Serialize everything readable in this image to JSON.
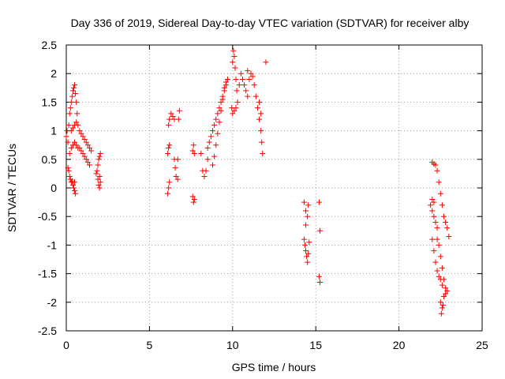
{
  "chart_data": {
    "type": "scatter",
    "title": "Day 336 of 2019, Sidereal Day-to-day VTEC variation (SDTVAR) for receiver alby",
    "xlabel": "GPS time / hours",
    "ylabel": "SDTVAR / TECUs",
    "xlim": [
      0,
      25
    ],
    "ylim": [
      -2.5,
      2.5
    ],
    "xticks": [
      0,
      5,
      10,
      15,
      20,
      25
    ],
    "yticks": [
      -2.5,
      -2,
      -1.5,
      -1,
      -0.5,
      0,
      0.5,
      1,
      1.5,
      2,
      2.5
    ],
    "xtick_labels": [
      "0",
      "5",
      "10",
      "15",
      "20",
      "25"
    ],
    "ytick_labels": [
      "-2.5",
      "-2",
      "-1.5",
      "-1",
      "-0.5",
      "0",
      "0.5",
      "1",
      "1.5",
      "2",
      "2.5"
    ],
    "grid": true,
    "marker": "+",
    "marker_color": "#ff0000",
    "series": [
      {
        "name": "SDTVAR",
        "points": [
          [
            0.0,
            0.9
          ],
          [
            0.05,
            1.0
          ],
          [
            0.1,
            0.8
          ],
          [
            0.15,
            1.1
          ],
          [
            0.2,
            1.3
          ],
          [
            0.25,
            1.4
          ],
          [
            0.3,
            1.5
          ],
          [
            0.35,
            1.6
          ],
          [
            0.4,
            1.7
          ],
          [
            0.45,
            1.75
          ],
          [
            0.5,
            1.8
          ],
          [
            0.55,
            1.65
          ],
          [
            0.6,
            1.5
          ],
          [
            0.65,
            1.3
          ],
          [
            0.1,
            0.35
          ],
          [
            0.15,
            0.3
          ],
          [
            0.2,
            0.2
          ],
          [
            0.25,
            0.15
          ],
          [
            0.3,
            0.1
          ],
          [
            0.35,
            0.12
          ],
          [
            0.4,
            0.05
          ],
          [
            0.45,
            0.0
          ],
          [
            0.5,
            -0.05
          ],
          [
            0.55,
            -0.1
          ],
          [
            0.5,
            0.1
          ],
          [
            0.2,
            0.6
          ],
          [
            0.3,
            0.7
          ],
          [
            0.4,
            0.75
          ],
          [
            0.5,
            0.8
          ],
          [
            0.6,
            0.75
          ],
          [
            0.7,
            0.7
          ],
          [
            0.8,
            0.7
          ],
          [
            0.9,
            0.65
          ],
          [
            1.0,
            0.6
          ],
          [
            1.1,
            0.55
          ],
          [
            1.2,
            0.5
          ],
          [
            1.3,
            0.45
          ],
          [
            1.4,
            0.4
          ],
          [
            0.3,
            1.0
          ],
          [
            0.4,
            1.05
          ],
          [
            0.5,
            1.1
          ],
          [
            0.6,
            1.15
          ],
          [
            0.7,
            1.1
          ],
          [
            0.8,
            1.0
          ],
          [
            0.9,
            0.95
          ],
          [
            1.0,
            0.9
          ],
          [
            1.1,
            0.85
          ],
          [
            1.2,
            0.8
          ],
          [
            1.3,
            0.75
          ],
          [
            1.4,
            0.7
          ],
          [
            1.5,
            0.65
          ],
          [
            1.8,
            0.25
          ],
          [
            1.85,
            0.3
          ],
          [
            1.9,
            0.4
          ],
          [
            1.95,
            0.5
          ],
          [
            2.0,
            0.55
          ],
          [
            2.05,
            0.6
          ],
          [
            1.9,
            0.15
          ],
          [
            1.95,
            0.05
          ],
          [
            2.0,
            0.0
          ],
          [
            2.05,
            0.1
          ],
          [
            2.0,
            0.2
          ],
          [
            6.1,
            -0.1
          ],
          [
            6.15,
            0.0
          ],
          [
            6.2,
            0.1
          ],
          [
            6.1,
            0.6
          ],
          [
            6.15,
            0.7
          ],
          [
            6.2,
            0.75
          ],
          [
            6.15,
            1.1
          ],
          [
            6.2,
            1.2
          ],
          [
            6.3,
            1.3
          ],
          [
            6.4,
            1.25
          ],
          [
            6.5,
            1.2
          ],
          [
            6.5,
            0.5
          ],
          [
            6.55,
            0.35
          ],
          [
            6.6,
            0.2
          ],
          [
            6.7,
            0.15
          ],
          [
            6.7,
            0.5
          ],
          [
            6.75,
            1.2
          ],
          [
            6.8,
            1.35
          ],
          [
            7.6,
            -0.15
          ],
          [
            7.65,
            -0.25
          ],
          [
            7.7,
            -0.2
          ],
          [
            7.6,
            0.65
          ],
          [
            7.65,
            0.75
          ],
          [
            7.7,
            0.6
          ],
          [
            8.1,
            0.6
          ],
          [
            8.2,
            0.3
          ],
          [
            8.3,
            0.2
          ],
          [
            8.4,
            0.3
          ],
          [
            8.5,
            0.5
          ],
          [
            8.5,
            0.7
          ],
          [
            8.6,
            0.8
          ],
          [
            8.7,
            0.9
          ],
          [
            8.8,
            1.0
          ],
          [
            8.9,
            1.1
          ],
          [
            9.0,
            1.2
          ],
          [
            9.1,
            1.3
          ],
          [
            9.2,
            1.4
          ],
          [
            9.3,
            1.5
          ],
          [
            9.4,
            1.6
          ],
          [
            9.5,
            1.7
          ],
          [
            9.6,
            1.8
          ],
          [
            9.7,
            1.9
          ],
          [
            8.8,
            0.4
          ],
          [
            8.9,
            0.55
          ],
          [
            9.0,
            0.75
          ],
          [
            9.1,
            0.95
          ],
          [
            9.2,
            1.15
          ],
          [
            9.3,
            1.35
          ],
          [
            9.4,
            1.55
          ],
          [
            9.5,
            1.75
          ],
          [
            9.6,
            1.85
          ],
          [
            9.95,
            1.4
          ],
          [
            10.0,
            2.2
          ],
          [
            10.05,
            2.4
          ],
          [
            10.1,
            2.3
          ],
          [
            10.15,
            2.1
          ],
          [
            10.2,
            1.9
          ],
          [
            10.25,
            1.7
          ],
          [
            10.3,
            1.5
          ],
          [
            10.0,
            1.3
          ],
          [
            10.1,
            1.35
          ],
          [
            10.2,
            1.4
          ],
          [
            10.4,
            1.8
          ],
          [
            10.5,
            2.0
          ],
          [
            10.6,
            1.9
          ],
          [
            10.7,
            1.8
          ],
          [
            10.8,
            1.7
          ],
          [
            10.9,
            1.6
          ],
          [
            11.0,
            1.9
          ],
          [
            11.1,
            2.0
          ],
          [
            11.2,
            1.95
          ],
          [
            11.3,
            1.8
          ],
          [
            11.4,
            1.6
          ],
          [
            11.5,
            1.4
          ],
          [
            11.6,
            1.2
          ],
          [
            11.7,
            1.0
          ],
          [
            11.75,
            0.8
          ],
          [
            11.8,
            0.6
          ],
          [
            11.6,
            1.5
          ],
          [
            11.7,
            1.3
          ],
          [
            12.0,
            2.2
          ],
          [
            10.9,
            2.05
          ],
          [
            14.3,
            -0.25
          ],
          [
            14.4,
            -0.4
          ],
          [
            14.5,
            -0.5
          ],
          [
            14.55,
            -0.3
          ],
          [
            14.3,
            -0.9
          ],
          [
            14.35,
            -1.0
          ],
          [
            14.4,
            -1.1
          ],
          [
            14.45,
            -1.2
          ],
          [
            14.5,
            -1.3
          ],
          [
            14.55,
            -1.15
          ],
          [
            14.6,
            -0.95
          ],
          [
            14.4,
            -0.65
          ],
          [
            15.2,
            -0.25
          ],
          [
            15.25,
            -0.75
          ],
          [
            15.2,
            -1.55
          ],
          [
            15.25,
            -1.65
          ],
          [
            21.9,
            -0.3
          ],
          [
            22.0,
            -0.4
          ],
          [
            22.1,
            -0.5
          ],
          [
            22.2,
            -0.6
          ],
          [
            22.3,
            -0.7
          ],
          [
            22.0,
            -0.2
          ],
          [
            22.1,
            -0.25
          ],
          [
            22.0,
            0.45
          ],
          [
            22.1,
            0.42
          ],
          [
            22.2,
            0.4
          ],
          [
            22.3,
            0.3
          ],
          [
            22.4,
            0.1
          ],
          [
            22.5,
            -0.1
          ],
          [
            22.6,
            -0.3
          ],
          [
            22.7,
            -0.5
          ],
          [
            22.8,
            -0.6
          ],
          [
            22.9,
            -0.7
          ],
          [
            23.0,
            -0.85
          ],
          [
            22.0,
            -0.9
          ],
          [
            22.1,
            -1.1
          ],
          [
            22.2,
            -1.3
          ],
          [
            22.3,
            -1.45
          ],
          [
            22.4,
            -1.55
          ],
          [
            22.5,
            -1.6
          ],
          [
            22.6,
            -1.7
          ],
          [
            22.7,
            -1.9
          ],
          [
            22.8,
            -1.85
          ],
          [
            22.9,
            -1.8
          ],
          [
            22.3,
            -0.9
          ],
          [
            22.4,
            -1.0
          ],
          [
            22.5,
            -1.2
          ],
          [
            22.6,
            -1.4
          ],
          [
            22.7,
            -1.6
          ],
          [
            22.8,
            -1.75
          ],
          [
            22.5,
            -2.0
          ],
          [
            22.6,
            -2.1
          ],
          [
            22.55,
            -2.2
          ],
          [
            22.65,
            -2.05
          ]
        ]
      }
    ]
  }
}
